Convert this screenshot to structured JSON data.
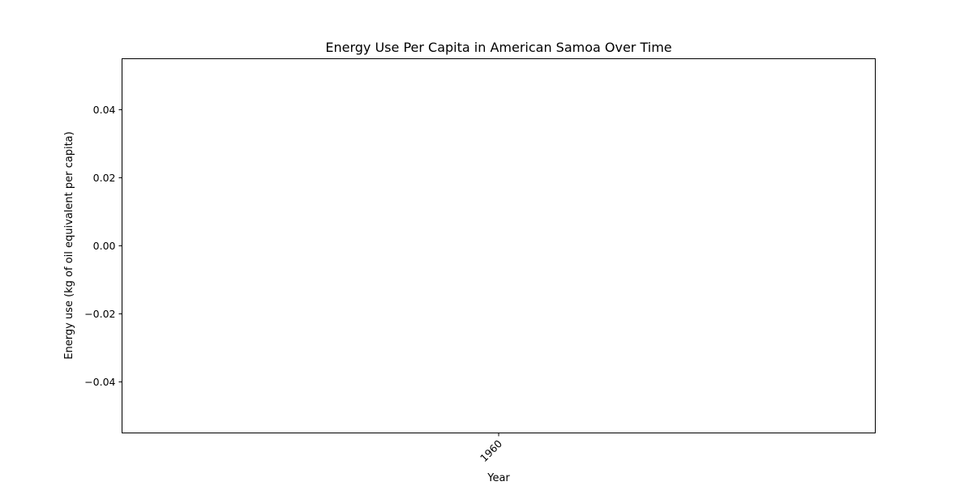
{
  "chart_data": {
    "type": "line",
    "title": "Energy Use Per Capita in American Samoa Over Time",
    "xlabel": "Year",
    "ylabel": "Energy use (kg of oil equivalent per capita)",
    "x_ticks": [
      "1960"
    ],
    "y_ticks": [
      0.04,
      0.02,
      0.0,
      -0.02,
      -0.04
    ],
    "y_tick_labels": [
      "0.04",
      "0.02",
      "0.00",
      "−0.02",
      "−0.04"
    ],
    "ylim": [
      -0.055,
      0.055
    ],
    "grid": false,
    "legend": "none",
    "series": [
      {
        "x": [],
        "values": []
      }
    ]
  }
}
